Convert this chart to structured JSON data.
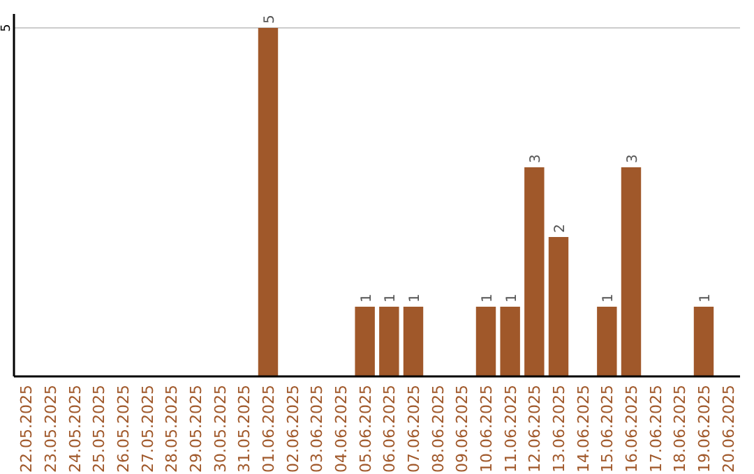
{
  "chart_data": {
    "type": "bar",
    "categories": [
      "22.05.2025",
      "23.05.2025",
      "24.05.2025",
      "25.05.2025",
      "26.05.2025",
      "27.05.2025",
      "28.05.2025",
      "29.05.2025",
      "30.05.2025",
      "31.05.2025",
      "01.06.2025",
      "02.06.2025",
      "03.06.2025",
      "04.06.2025",
      "05.06.2025",
      "06.06.2025",
      "07.06.2025",
      "08.06.2025",
      "09.06.2025",
      "10.06.2025",
      "11.06.2025",
      "12.06.2025",
      "13.06.2025",
      "14.06.2025",
      "15.06.2025",
      "16.06.2025",
      "17.06.2025",
      "18.06.2025",
      "19.06.2025",
      "20.06.2025"
    ],
    "values": [
      0,
      0,
      0,
      0,
      0,
      0,
      0,
      0,
      0,
      0,
      5,
      0,
      0,
      0,
      1,
      1,
      1,
      0,
      0,
      1,
      1,
      3,
      2,
      0,
      1,
      3,
      0,
      0,
      1,
      0
    ],
    "value_labels": [
      null,
      null,
      null,
      null,
      null,
      null,
      null,
      null,
      null,
      null,
      "5",
      null,
      null,
      null,
      "1",
      "1",
      "1",
      null,
      null,
      "1",
      "1",
      "3",
      "2",
      null,
      "1",
      "3",
      null,
      null,
      "1",
      null
    ],
    "color": "#a0582a",
    "ylim": [
      0,
      5.2
    ],
    "yticks": [
      5
    ],
    "grid": "y"
  }
}
